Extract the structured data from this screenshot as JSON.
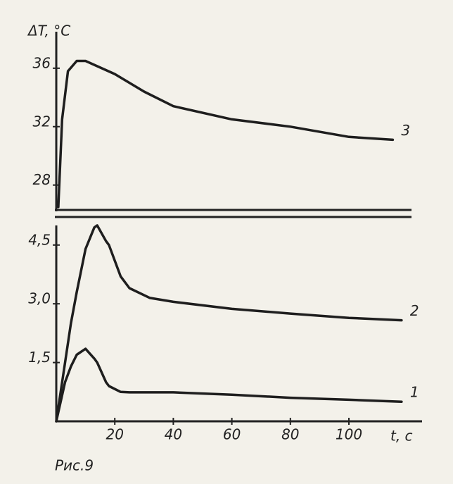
{
  "chart_data": [
    {
      "type": "line",
      "y_label": "ΔT, °C",
      "x": [
        0.7,
        2,
        4,
        7,
        10,
        20,
        30,
        40,
        60,
        80,
        100,
        115
      ],
      "series": [
        {
          "name": "3",
          "color": "#1e1e1e",
          "values": [
            26.5,
            32.5,
            35.8,
            36.5,
            36.5,
            35.6,
            34.4,
            33.4,
            32.5,
            32.0,
            31.3,
            31.1
          ]
        }
      ],
      "xlim": [
        0,
        125
      ],
      "ylim": [
        26.2,
        38.5
      ],
      "yticks": [
        28,
        32,
        36
      ]
    },
    {
      "type": "line",
      "x_label": "t, c",
      "caption": "Рис.9",
      "x": [
        0,
        3,
        5,
        7,
        10,
        13,
        14,
        17,
        18,
        22,
        25,
        32,
        40,
        60,
        80,
        100,
        118
      ],
      "series": [
        {
          "name": "1",
          "color": "#1e1e1e",
          "values": [
            0,
            1.0,
            1.4,
            1.7,
            1.85,
            1.6,
            1.5,
            1.0,
            0.9,
            0.75,
            0.74,
            0.74,
            0.74,
            0.68,
            0.6,
            0.55,
            0.5
          ]
        },
        {
          "name": "2",
          "color": "#1e1e1e",
          "values": [
            0,
            1.5,
            2.5,
            3.3,
            4.4,
            4.95,
            5.0,
            4.6,
            4.5,
            3.7,
            3.4,
            3.15,
            3.05,
            2.87,
            2.75,
            2.64,
            2.58
          ]
        }
      ],
      "xlim": [
        0,
        125
      ],
      "ylim": [
        0,
        5.0
      ],
      "xticks": [
        20,
        40,
        60,
        80,
        100
      ],
      "yticks": [
        {
          "value": 1.5,
          "label": "1,5"
        },
        {
          "value": 3.0,
          "label": "3,0"
        },
        {
          "value": 4.5,
          "label": "4,5"
        }
      ]
    }
  ]
}
